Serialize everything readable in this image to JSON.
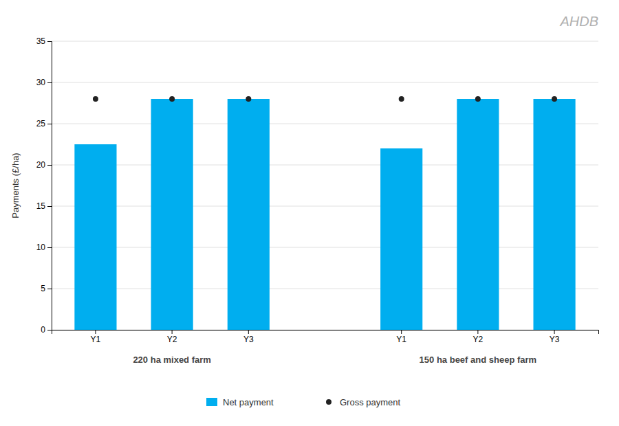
{
  "chart_data": {
    "type": "bar",
    "y_label": "Payments (£/ha)",
    "annotations": [
      "AHDB"
    ],
    "groups": [
      {
        "label": "220 ha mixed farm",
        "categories": [
          "Y1",
          "Y2",
          "Y3"
        ]
      },
      {
        "label": "150 ha beef and sheep farm",
        "categories": [
          "Y1",
          "Y2",
          "Y3"
        ]
      }
    ],
    "series": [
      {
        "name": "Net payment",
        "type": "bar",
        "color": "#00AEEF",
        "values": [
          22.5,
          28.0,
          28.0,
          22.0,
          28.0,
          28.0
        ]
      },
      {
        "name": "Gross payment",
        "type": "scatter",
        "marker": "circle",
        "color": "#222222",
        "values": [
          28.0,
          28.0,
          28.0,
          28.0,
          28.0,
          28.0
        ]
      }
    ],
    "ylim": [
      0,
      35
    ],
    "yticks": [
      0,
      5,
      10,
      15,
      20,
      25,
      30,
      35
    ],
    "grid": true,
    "legend": "bottom"
  }
}
